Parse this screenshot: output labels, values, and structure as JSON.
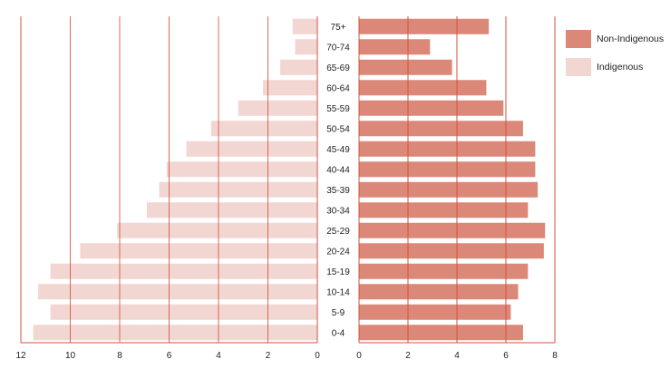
{
  "chart_data": {
    "type": "bar",
    "orientation": "horizontal-pyramid",
    "categories": [
      "75+",
      "70-74",
      "65-69",
      "60-64",
      "55-59",
      "50-54",
      "45-49",
      "40-44",
      "35-39",
      "30-34",
      "25-29",
      "20-24",
      "15-19",
      "10-14",
      "5-9",
      "0-4"
    ],
    "series": [
      {
        "name": "Non-Indigenous",
        "side": "right",
        "color": "#db8878",
        "values": [
          5.3,
          2.9,
          3.8,
          5.2,
          5.9,
          6.7,
          7.2,
          7.2,
          7.3,
          6.9,
          7.6,
          7.55,
          6.9,
          6.5,
          6.2,
          6.7
        ]
      },
      {
        "name": "Indigenous",
        "side": "left",
        "color": "#f2d6d2",
        "values": [
          1.0,
          0.9,
          1.5,
          2.2,
          3.2,
          4.3,
          5.3,
          6.1,
          6.4,
          6.9,
          8.1,
          9.6,
          10.8,
          11.3,
          10.8,
          11.5
        ]
      }
    ],
    "left_axis": {
      "range": [
        12,
        0
      ],
      "ticks": [
        "12",
        "10",
        "8",
        "6",
        "4",
        "2",
        "0"
      ]
    },
    "right_axis": {
      "range": [
        0,
        8
      ],
      "ticks": [
        "0",
        "2",
        "4",
        "6",
        "8"
      ]
    },
    "grid": true,
    "legend_position": "top-right",
    "title": "",
    "xlabel": "",
    "ylabel": ""
  },
  "colors": {
    "axis": "#d6523c"
  }
}
